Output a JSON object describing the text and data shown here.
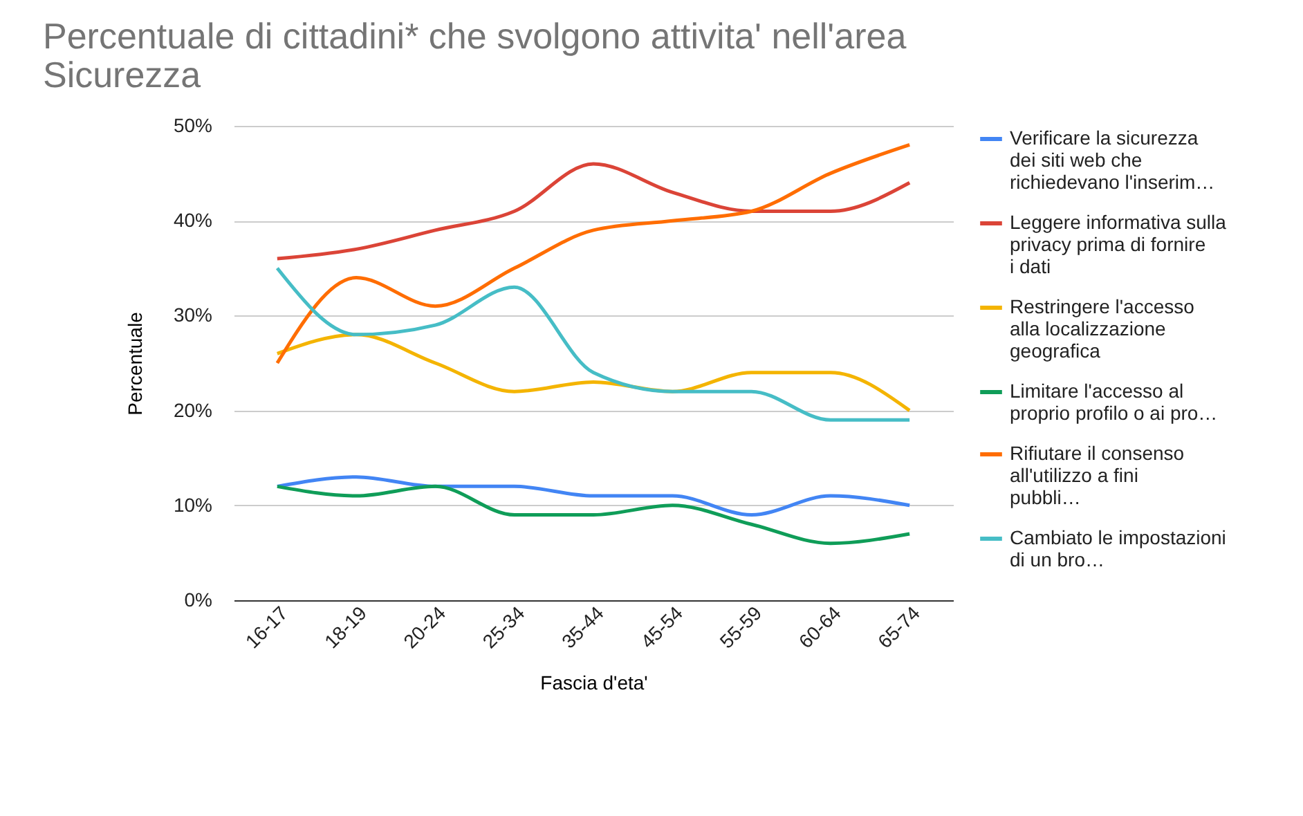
{
  "chart_data": {
    "type": "line",
    "title": "Percentuale di cittadini* che svolgono attivita' nell'area Sicurezza",
    "xlabel": "Fascia d'eta'",
    "ylabel": "Percentuale",
    "categories": [
      "16-17",
      "18-19",
      "20-24",
      "25-34",
      "35-44",
      "45-54",
      "55-59",
      "60-64",
      "65-74"
    ],
    "ylim": [
      0,
      50
    ],
    "yticks": [
      {
        "value": 0,
        "label": "0%"
      },
      {
        "value": 10,
        "label": "10%"
      },
      {
        "value": 20,
        "label": "20%"
      },
      {
        "value": 30,
        "label": "30%"
      },
      {
        "value": 40,
        "label": "40%"
      },
      {
        "value": 50,
        "label": "50%"
      }
    ],
    "grid": "y",
    "legend": "right",
    "series": [
      {
        "name": "Verificare la sicurezza dei siti web che richiedevano l'inserim…",
        "color": "#4285f4",
        "values": [
          12,
          13,
          12,
          12,
          11,
          11,
          9,
          11,
          10
        ]
      },
      {
        "name": "Leggere informativa sulla privacy prima di fornire i dati",
        "color": "#db4437",
        "values": [
          36,
          37,
          39,
          41,
          46,
          43,
          41,
          41,
          44
        ]
      },
      {
        "name": "Restringere l'accesso alla localizzazione geografica",
        "color": "#f4b400",
        "values": [
          26,
          28,
          25,
          22,
          23,
          22,
          24,
          24,
          20
        ]
      },
      {
        "name": "Limitare l'accesso al proprio profilo o ai pro…",
        "color": "#0f9d58",
        "values": [
          12,
          11,
          12,
          9,
          9,
          10,
          8,
          6,
          7
        ]
      },
      {
        "name": "Rifiutare il consenso all'utilizzo a fini pubbli…",
        "color": "#ff6d01",
        "values": [
          25,
          34,
          31,
          35,
          39,
          40,
          41,
          45,
          48
        ]
      },
      {
        "name": "Cambiato le impostazioni di un bro…",
        "color": "#46bdc6",
        "values": [
          35,
          28,
          29,
          33,
          24,
          22,
          22,
          19,
          19
        ]
      }
    ]
  }
}
